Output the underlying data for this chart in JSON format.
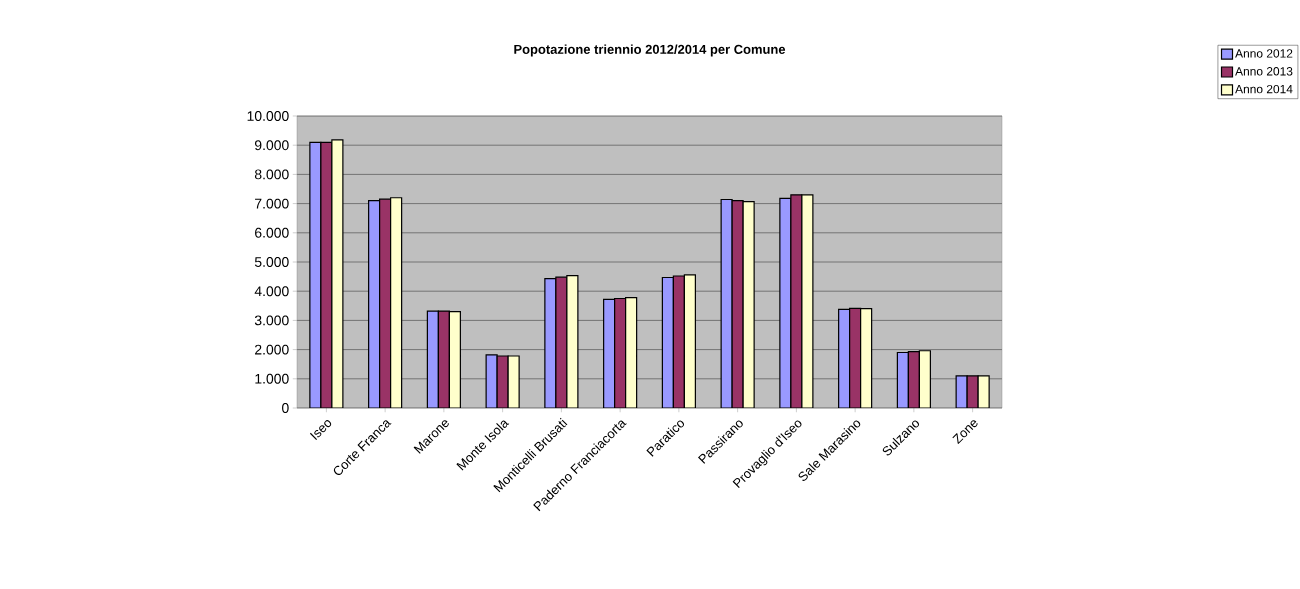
{
  "chart_data": {
    "type": "bar",
    "title": "Popotazione triennio 2012/2014 per Comune",
    "categories": [
      "Iseo",
      "Corte Franca",
      "Marone",
      "Monte Isola",
      "Monticelli Brusati",
      "Paderno Franciacorta",
      "Paratico",
      "Passirano",
      "Provaglio d'Iseo",
      "Sale Marasino",
      "Sulzano",
      "Zone"
    ],
    "series": [
      {
        "name": "Anno 2012",
        "color": "#9999ff",
        "values": [
          9100,
          7100,
          3320,
          1820,
          4430,
          3720,
          4470,
          7140,
          7180,
          3380,
          1900,
          1100
        ]
      },
      {
        "name": "Anno 2013",
        "color": "#993366",
        "values": [
          9100,
          7150,
          3320,
          1780,
          4480,
          3750,
          4520,
          7100,
          7300,
          3410,
          1930,
          1100
        ]
      },
      {
        "name": "Anno 2014",
        "color": "#ffffcc",
        "values": [
          9180,
          7200,
          3300,
          1780,
          4530,
          3780,
          4560,
          7070,
          7300,
          3400,
          1960,
          1100
        ]
      }
    ],
    "ylim": [
      0,
      10000
    ],
    "yticks": [
      0,
      {
        "value": 1000,
        "label": "1.000"
      },
      {
        "value": 2000,
        "label": "2.000"
      },
      {
        "value": 3000,
        "label": "3.000"
      },
      {
        "value": 4000,
        "label": "4.000"
      },
      {
        "value": 5000,
        "label": "5.000"
      },
      {
        "value": 6000,
        "label": "6.000"
      },
      {
        "value": 7000,
        "label": "7.000"
      },
      {
        "value": 8000,
        "label": "8.000"
      },
      {
        "value": 9000,
        "label": "9.000"
      },
      {
        "value": 10000,
        "label": "10.000"
      }
    ],
    "grid": "y",
    "legend": "top right"
  }
}
